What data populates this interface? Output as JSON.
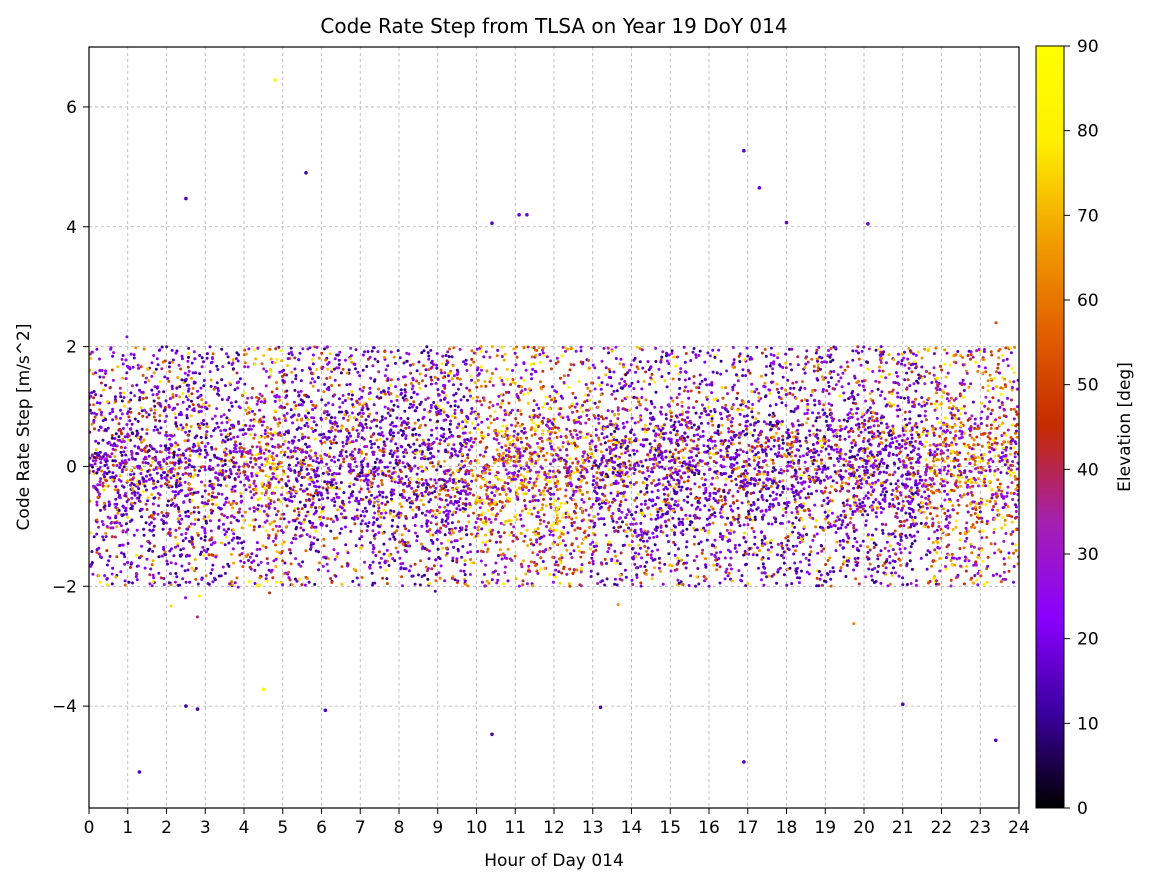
{
  "chart_data": {
    "type": "scatter",
    "title": "Code Rate Step from TLSA on Year 19 DoY 014",
    "xlabel": "Hour of Day 014",
    "ylabel": "Code Rate Step [m/s^2]",
    "xlim": [
      0,
      24
    ],
    "ylim": [
      -5.7,
      7.0
    ],
    "xticks": [
      0,
      1,
      2,
      3,
      4,
      5,
      6,
      7,
      8,
      9,
      10,
      11,
      12,
      13,
      14,
      15,
      16,
      17,
      18,
      19,
      20,
      21,
      22,
      23,
      24
    ],
    "yticks": [
      -4,
      -2,
      0,
      2,
      4,
      6
    ],
    "ytick_labels": [
      "−4",
      "−2",
      "0",
      "2",
      "4",
      "6"
    ],
    "grid": true,
    "colorbar": {
      "label": "Elevation [deg]",
      "min": 0,
      "max": 90,
      "ticks": [
        0,
        10,
        20,
        30,
        40,
        50,
        60,
        70,
        80,
        90
      ],
      "colormap": "gnuplot",
      "stops": [
        "#000000",
        "#3b00a0",
        "#8a00ff",
        "#a520b0",
        "#c42a00",
        "#e26000",
        "#f2a100",
        "#fff000",
        "#ffff00"
      ]
    },
    "approx_ranges": {
      "bulk_y": [
        -2.0,
        2.0
      ],
      "outlier_y": [
        -5.1,
        6.45
      ],
      "high_elevation_hours": [
        [
          4.0,
          5.0
        ],
        [
          9.8,
          13.0
        ],
        [
          21.5,
          24.0
        ]
      ]
    },
    "notable_points": [
      {
        "x": 4.8,
        "y": 6.45,
        "elev": 85
      },
      {
        "x": 16.9,
        "y": 5.27,
        "elev": 15
      },
      {
        "x": 5.6,
        "y": 4.9,
        "elev": 12
      },
      {
        "x": 17.3,
        "y": 4.65,
        "elev": 16
      },
      {
        "x": 2.5,
        "y": 4.47,
        "elev": 15
      },
      {
        "x": 11.3,
        "y": 4.2,
        "elev": 18
      },
      {
        "x": 11.1,
        "y": 4.2,
        "elev": 18
      },
      {
        "x": 10.4,
        "y": 4.06,
        "elev": 16
      },
      {
        "x": 20.1,
        "y": 4.05,
        "elev": 18
      },
      {
        "x": 18.0,
        "y": 4.07,
        "elev": 18
      },
      {
        "x": 1.3,
        "y": -5.1,
        "elev": 14
      },
      {
        "x": 16.9,
        "y": -4.93,
        "elev": 15
      },
      {
        "x": 23.4,
        "y": -4.57,
        "elev": 15
      },
      {
        "x": 10.4,
        "y": -4.47,
        "elev": 14
      },
      {
        "x": 2.5,
        "y": -4.0,
        "elev": 12
      },
      {
        "x": 2.8,
        "y": -4.05,
        "elev": 12
      },
      {
        "x": 6.1,
        "y": -4.07,
        "elev": 14
      },
      {
        "x": 13.2,
        "y": -4.02,
        "elev": 14
      },
      {
        "x": 21.0,
        "y": -3.97,
        "elev": 14
      },
      {
        "x": 4.5,
        "y": -3.72,
        "elev": 84
      }
    ]
  }
}
